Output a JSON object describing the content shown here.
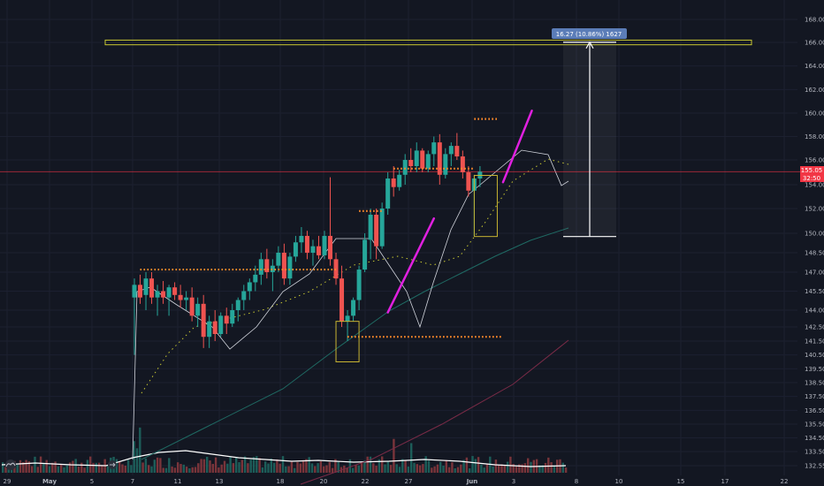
{
  "chart_data": {
    "type": "candlestick",
    "y_axis": {
      "position": "right",
      "range": [
        132.0,
        169.5
      ],
      "ticks": [
        "132.55",
        "133.50",
        "134.50",
        "135.50",
        "136.50",
        "137.50",
        "138.50",
        "139.50",
        "140.50",
        "141.50",
        "142.50",
        "144.00",
        "145.50",
        "147.00",
        "148.50",
        "150.00",
        "152.00",
        "154.00",
        "156.00",
        "158.00",
        "160.00",
        "162.00",
        "164.00",
        "166.00",
        "168.00"
      ]
    },
    "x_axis": {
      "ticks": [
        {
          "label": "29",
          "bold": false
        },
        {
          "label": "May",
          "bold": true
        },
        {
          "label": "5",
          "bold": false
        },
        {
          "label": "7",
          "bold": false
        },
        {
          "label": "11",
          "bold": false
        },
        {
          "label": "13",
          "bold": false
        },
        {
          "label": "18",
          "bold": false
        },
        {
          "label": "20",
          "bold": false
        },
        {
          "label": "22",
          "bold": false
        },
        {
          "label": "27",
          "bold": false
        },
        {
          "label": "Jun",
          "bold": true
        },
        {
          "label": "3",
          "bold": false
        },
        {
          "label": "8",
          "bold": false
        },
        {
          "label": "10",
          "bold": false
        },
        {
          "label": "15",
          "bold": false
        },
        {
          "label": "17",
          "bold": false
        },
        {
          "label": "22",
          "bold": false
        }
      ]
    },
    "price_tags": [
      {
        "text": "155.05",
        "value": 155.05,
        "color": "#f23645"
      },
      {
        "text": "32:50",
        "value": 154.45,
        "color": "#f23645"
      }
    ],
    "last_price": 155.05,
    "measure": {
      "label": "16.27 (10.86%) 1627",
      "from": 149.75,
      "to": 166.02
    },
    "resistance_zone": [
      165.8,
      166.2
    ],
    "levels": [
      {
        "value": 147.2,
        "start": 7.5,
        "end": 24.5
      },
      {
        "value": 151.8,
        "start": 26.5,
        "end": 28.5
      },
      {
        "value": 155.3,
        "start": 29.5,
        "end": 36.5
      },
      {
        "value": 159.5,
        "start": 36.5,
        "end": 38.5
      },
      {
        "value": 141.8,
        "start": 25.5,
        "end": 39
      }
    ],
    "boxes": [
      {
        "start": 24.5,
        "end": 26.5,
        "low": 140.0,
        "high": 143.0
      },
      {
        "start": 36.5,
        "end": 38.5,
        "low": 149.75,
        "high": 154.75
      }
    ],
    "trend_lines": [
      {
        "start": [
          29,
          143.8
        ],
        "end": [
          33,
          151.2
        ]
      },
      {
        "start": [
          39,
          154.2
        ],
        "end": [
          41.5,
          160.2
        ]
      }
    ],
    "candles": [
      [
        7,
        145.0,
        146.5,
        140.5,
        146.0
      ],
      [
        7.5,
        146.0,
        146.8,
        144.5,
        145.0
      ],
      [
        8,
        145.2,
        147.0,
        144.0,
        146.5
      ],
      [
        8.5,
        146.5,
        147.0,
        144.5,
        145.0
      ],
      [
        9,
        145.0,
        146.0,
        143.5,
        145.5
      ],
      [
        9.5,
        145.5,
        146.3,
        144.5,
        145.0
      ],
      [
        10,
        145.0,
        146.0,
        143.5,
        145.8
      ],
      [
        10.5,
        145.8,
        146.2,
        144.8,
        145.2
      ],
      [
        11,
        145.2,
        146.0,
        144.2,
        144.8
      ],
      [
        11.5,
        144.8,
        145.5,
        144.0,
        145.0
      ],
      [
        12,
        145.0,
        145.8,
        143.0,
        143.5
      ],
      [
        12.5,
        143.5,
        145.0,
        142.5,
        144.5
      ],
      [
        13,
        144.5,
        145.2,
        141.0,
        141.8
      ],
      [
        13.5,
        141.8,
        143.5,
        141.0,
        143.0
      ],
      [
        14,
        143.0,
        144.0,
        141.5,
        142.0
      ],
      [
        14.5,
        142.0,
        143.8,
        141.8,
        143.5
      ],
      [
        15,
        143.5,
        144.2,
        142.0,
        142.8
      ],
      [
        15.5,
        142.8,
        144.5,
        142.5,
        144.0
      ],
      [
        16,
        144.0,
        145.0,
        143.0,
        144.8
      ],
      [
        16.5,
        144.8,
        146.0,
        144.0,
        145.5
      ],
      [
        17,
        145.5,
        146.5,
        144.8,
        146.2
      ],
      [
        17.5,
        146.2,
        147.5,
        145.5,
        146.8
      ],
      [
        18,
        146.8,
        148.5,
        146.0,
        148.0
      ],
      [
        18.5,
        148.0,
        148.8,
        146.5,
        147.0
      ],
      [
        19,
        147.0,
        148.0,
        145.5,
        147.5
      ],
      [
        19.5,
        147.5,
        149.0,
        147.0,
        148.5
      ],
      [
        20,
        148.5,
        149.2,
        146.0,
        146.5
      ],
      [
        20.5,
        146.5,
        148.5,
        146.0,
        148.2
      ],
      [
        21,
        148.2,
        149.8,
        147.8,
        149.3
      ],
      [
        21.5,
        149.3,
        150.5,
        148.5,
        149.8
      ],
      [
        22,
        149.8,
        150.2,
        148.0,
        148.5
      ],
      [
        22.5,
        148.5,
        149.5,
        147.5,
        149.0
      ],
      [
        23,
        149.0,
        149.8,
        148.0,
        148.3
      ],
      [
        23.5,
        148.3,
        150.2,
        148.0,
        149.8
      ],
      [
        24,
        149.8,
        154.6,
        147.5,
        148.0
      ],
      [
        24.5,
        148.0,
        148.5,
        146.0,
        146.5
      ],
      [
        25,
        146.5,
        147.5,
        142.5,
        143.0
      ],
      [
        25.5,
        143.0,
        144.0,
        141.5,
        143.5
      ],
      [
        26,
        143.5,
        145.0,
        143.0,
        144.8
      ],
      [
        26.5,
        144.8,
        147.5,
        144.0,
        147.2
      ],
      [
        27,
        147.2,
        150.0,
        147.0,
        149.5
      ],
      [
        27.5,
        149.5,
        152.0,
        148.0,
        151.5
      ],
      [
        28,
        151.5,
        152.0,
        148.0,
        149.0
      ],
      [
        28.5,
        149.0,
        152.5,
        148.8,
        152.0
      ],
      [
        29,
        152.0,
        155.0,
        151.5,
        154.5
      ],
      [
        29.5,
        154.5,
        155.5,
        153.0,
        153.8
      ],
      [
        30,
        153.8,
        155.2,
        153.5,
        154.8
      ],
      [
        30.5,
        154.8,
        156.5,
        154.0,
        156.0
      ],
      [
        31,
        156.0,
        157.0,
        155.0,
        155.5
      ],
      [
        31.5,
        155.5,
        157.5,
        155.0,
        156.8
      ],
      [
        32,
        156.8,
        157.0,
        155.0,
        155.3
      ],
      [
        32.5,
        155.3,
        156.8,
        155.0,
        156.5
      ],
      [
        33,
        156.5,
        158.0,
        155.5,
        157.5
      ],
      [
        33.5,
        157.5,
        158.2,
        154.0,
        154.8
      ],
      [
        34,
        154.8,
        157.0,
        154.5,
        156.5
      ],
      [
        34.5,
        156.5,
        157.5,
        155.5,
        157.2
      ],
      [
        35,
        157.2,
        158.3,
        156.0,
        156.3
      ],
      [
        35.5,
        156.3,
        156.8,
        154.5,
        155.0
      ],
      [
        36,
        155.0,
        155.5,
        153.0,
        153.5
      ],
      [
        36.5,
        153.5,
        154.8,
        149.8,
        154.5
      ],
      [
        37,
        154.5,
        155.5,
        153.8,
        155.05
      ]
    ]
  }
}
